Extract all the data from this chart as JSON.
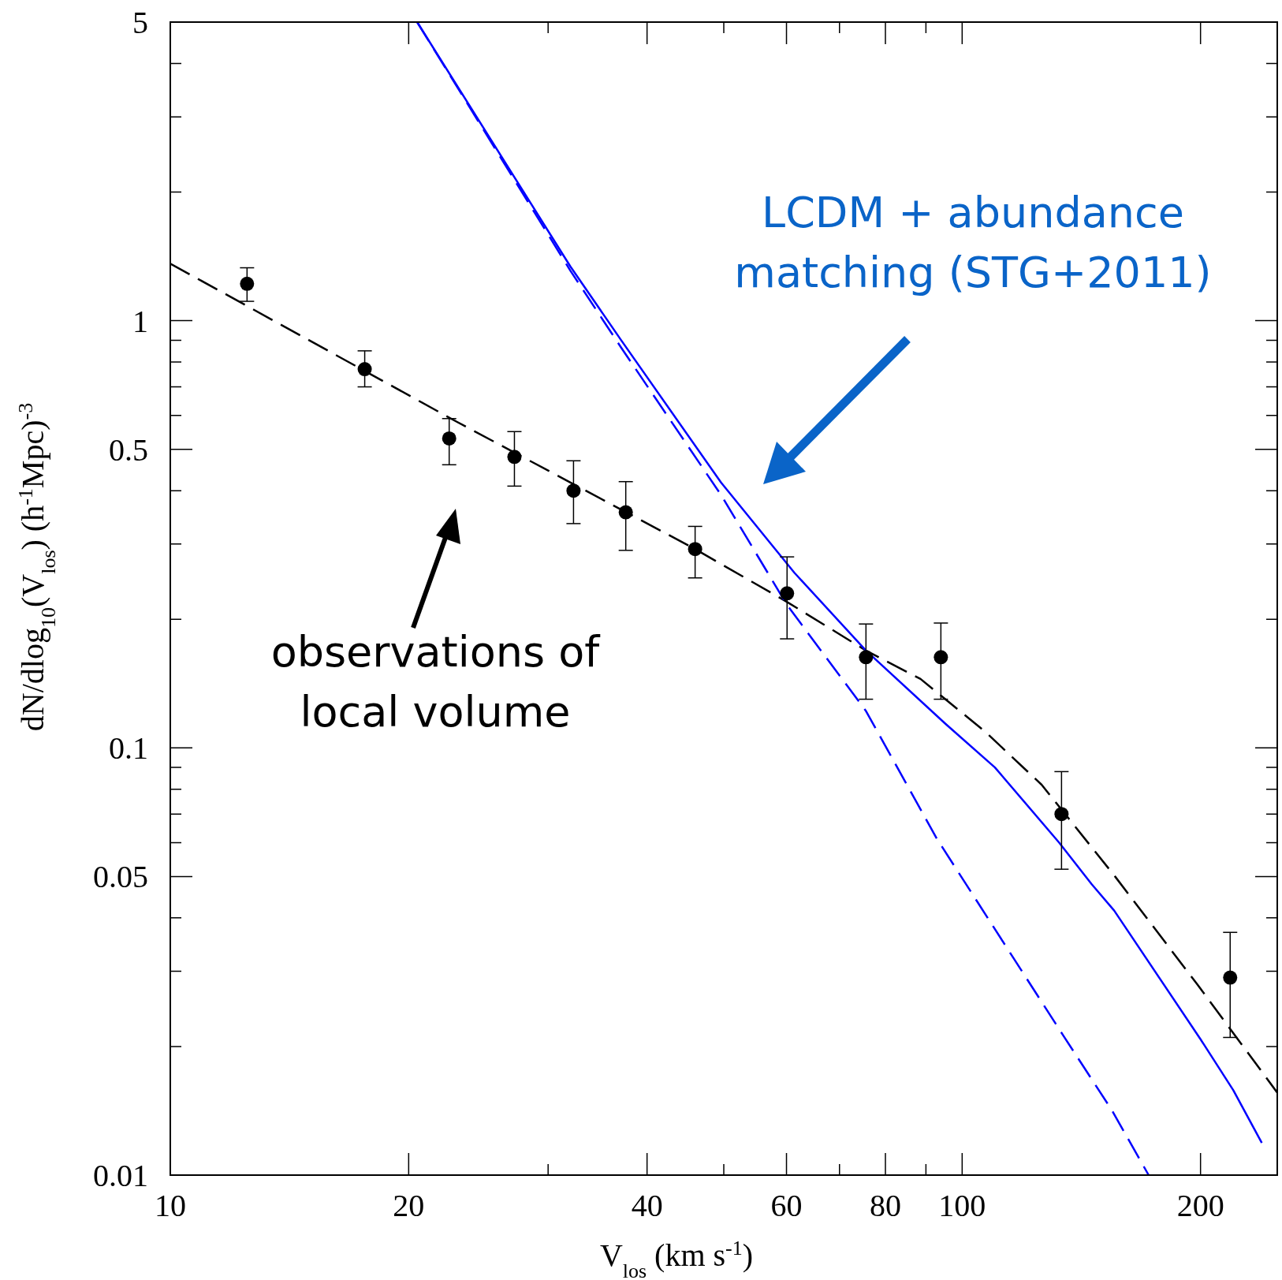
{
  "chart_data": {
    "type": "scatter",
    "xlabel": "V$_{los}$ (km s$^{-1}$)",
    "ylabel": "dN/dlog$_{10}$(V$_{los}$)  (h$^{-1}$Mpc)$^{-3}$",
    "log": "xy",
    "xlim": [
      10,
      250
    ],
    "ylim": [
      0.01,
      5
    ],
    "xticks": [
      10,
      20,
      {
        "value": 30,
        "label": null
      },
      40,
      {
        "value": 50,
        "label": null
      },
      60,
      {
        "value": 70,
        "label": null
      },
      80,
      {
        "value": 90,
        "label": null
      },
      100,
      200
    ],
    "yticks": [
      0.01,
      {
        "value": 0.02,
        "label": null
      },
      {
        "value": 0.03,
        "label": null
      },
      {
        "value": 0.04,
        "label": null
      },
      0.05,
      {
        "value": 0.06,
        "label": null
      },
      {
        "value": 0.07,
        "label": null
      },
      {
        "value": 0.08,
        "label": null
      },
      {
        "value": 0.09,
        "label": null
      },
      0.1,
      {
        "value": 0.2,
        "label": null
      },
      {
        "value": 0.3,
        "label": null
      },
      {
        "value": 0.4,
        "label": null
      },
      0.5,
      {
        "value": 0.6,
        "label": null
      },
      {
        "value": 0.7,
        "label": null
      },
      {
        "value": 0.8,
        "label": null
      },
      {
        "value": 0.9,
        "label": null
      },
      1,
      {
        "value": 2,
        "label": null
      },
      {
        "value": 3,
        "label": null
      },
      {
        "value": 4,
        "label": null
      },
      5
    ],
    "grid": false,
    "series": [
      {
        "type": "line",
        "color": "#000000",
        "line_style": "dashed",
        "x": [
          10,
          23,
          46,
          60,
          75.6,
          88.6,
          107,
          126,
          156,
          198,
          250
        ],
        "values": [
          1.36,
          0.58,
          0.292,
          0.22,
          0.169,
          0.145,
          0.109,
          0.082,
          0.05,
          0.028,
          0.0156
        ]
      },
      {
        "type": "line",
        "color": "#0000ff",
        "line_style": "solid",
        "x": [
          20.5,
          32,
          37.1,
          49.6,
          61.4,
          75.6,
          95.2,
          110,
          132.6,
          145.7,
          155.6,
          200,
          220,
          239
        ],
        "values": [
          5,
          1.34,
          0.9,
          0.418,
          0.257,
          0.169,
          0.114,
          0.09,
          0.06,
          0.048,
          0.0416,
          0.0208,
          0.0158,
          0.0119
        ]
      },
      {
        "type": "line",
        "color": "#0000ff",
        "line_style": "dashed",
        "x": [
          20.5,
          32,
          37.1,
          49.6,
          60.1,
          75.6,
          92.9,
          134,
          154.5,
          172
        ],
        "values": [
          5,
          1.31,
          0.865,
          0.391,
          0.216,
          0.122,
          0.0613,
          0.0213,
          0.0142,
          0.01
        ]
      },
      {
        "color": "#000000",
        "marker": "circle",
        "x": [
          12.5,
          17.6,
          22.5,
          27.2,
          32.3,
          37.6,
          46,
          60.1,
          75.6,
          94,
          133.5,
          218
        ],
        "values": [
          1.22,
          0.77,
          0.53,
          0.48,
          0.4,
          0.356,
          0.292,
          0.23,
          0.163,
          0.163,
          0.07,
          0.029
        ],
        "errors": [
          [
            1.11,
            1.33
          ],
          [
            0.7,
            0.85
          ],
          [
            0.46,
            0.59
          ],
          [
            0.41,
            0.55
          ],
          [
            0.335,
            0.47
          ],
          [
            0.29,
            0.42
          ],
          [
            0.25,
            0.33
          ],
          [
            0.18,
            0.28
          ],
          [
            0.13,
            0.195
          ],
          [
            0.13,
            0.196
          ],
          [
            0.052,
            0.088
          ],
          [
            0.021,
            0.037
          ]
        ]
      }
    ],
    "annotations": [
      "LCDM + abundance matching (STG+2011)",
      "observations of local volume"
    ]
  }
}
